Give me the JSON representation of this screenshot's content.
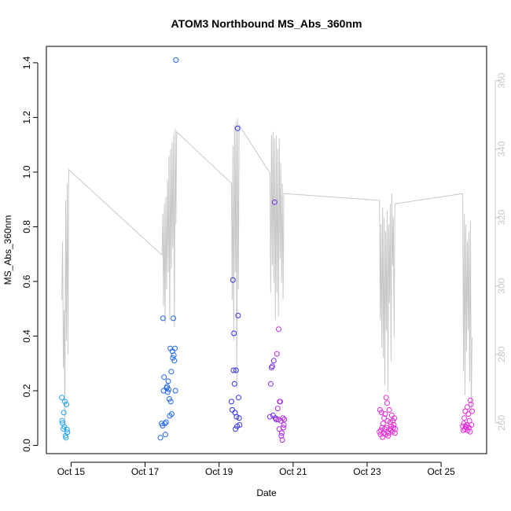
{
  "chart_data": {
    "type": "scatter",
    "title": "ATOM3 Northbound MS_Abs_360nm",
    "xlabel": "Date",
    "ylabel": "MS_Abs_360nm",
    "xlim": [
      "2023-10-14 08:00",
      "2023-10-26 05:30"
    ],
    "ylim": [
      -0.03,
      1.46
    ],
    "y2lim": [
      251,
      370
    ],
    "x_ticks": [
      {
        "date": "2023-10-15",
        "label": "Oct 15"
      },
      {
        "date": "2023-10-17",
        "label": "Oct 17"
      },
      {
        "date": "2023-10-19",
        "label": "Oct 19"
      },
      {
        "date": "2023-10-21",
        "label": "Oct 21"
      },
      {
        "date": "2023-10-23",
        "label": "Oct 23"
      },
      {
        "date": "2023-10-25",
        "label": "Oct 25"
      }
    ],
    "y_ticks": [
      "0.0",
      "0.2",
      "0.4",
      "0.6",
      "0.8",
      "1.0",
      "1.2",
      "1.4"
    ],
    "y2_ticks": [
      "260",
      "280",
      "300",
      "320",
      "340",
      "360"
    ],
    "grid": false,
    "colors": {
      "line_series": "#c8c8c8",
      "right_axis": "#c8c8c8",
      "points": [
        "#1ea5f0",
        "#1e64f0",
        "#2f2ff0",
        "#7a2bf0",
        "#b42ae6",
        "#e62ad8"
      ]
    },
    "series": [
      {
        "kind": "points",
        "color": "#1ea5f0",
        "x": [
          "2023-10-14 18:00",
          "2023-10-14 18:10",
          "2023-10-14 18:30",
          "2023-10-14 19:00",
          "2023-10-14 19:20",
          "2023-10-14 19:40",
          "2023-10-14 20:00",
          "2023-10-14 20:20",
          "2023-10-14 20:40",
          "2023-10-14 21:00",
          "2023-10-14 21:20",
          "2023-10-14 21:40"
        ],
        "y": [
          0.175,
          0.09,
          0.082,
          0.06,
          0.12,
          0.068,
          0.16,
          0.035,
          0.028,
          0.15,
          0.058,
          0.048
        ]
      },
      {
        "kind": "points",
        "color": "#1e64f0",
        "x": [
          "2023-10-17 10:00",
          "2023-10-17 10:40",
          "2023-10-17 11:20",
          "2023-10-17 11:40",
          "2023-10-17 12:00",
          "2023-10-17 12:20",
          "2023-10-17 12:50",
          "2023-10-17 13:10",
          "2023-10-17 13:40",
          "2023-10-17 14:00",
          "2023-10-17 14:20",
          "2023-10-17 14:40",
          "2023-10-17 15:00",
          "2023-10-17 15:20",
          "2023-10-17 15:40",
          "2023-10-17 16:00",
          "2023-10-17 16:20",
          "2023-10-17 16:40",
          "2023-10-17 17:00",
          "2023-10-17 17:20",
          "2023-10-17 17:40",
          "2023-10-17 18:00",
          "2023-10-17 18:20",
          "2023-10-17 18:40",
          "2023-10-17 19:00",
          "2023-10-17 19:20",
          "2023-10-17 19:40",
          "2023-10-17 20:00"
        ],
        "y": [
          0.028,
          0.08,
          0.072,
          0.465,
          0.2,
          0.25,
          0.08,
          0.04,
          0.085,
          0.21,
          0.215,
          0.195,
          0.235,
          0.205,
          0.17,
          0.108,
          0.355,
          0.16,
          0.27,
          0.115,
          0.345,
          0.32,
          0.465,
          0.33,
          0.31,
          0.355,
          0.2,
          1.41
        ]
      },
      {
        "kind": "points",
        "color": "#2f2ff0",
        "x": [
          "2023-10-19 08:00",
          "2023-10-19 08:30",
          "2023-10-19 09:00",
          "2023-10-19 09:20",
          "2023-10-19 09:40",
          "2023-10-19 10:00",
          "2023-10-19 10:20",
          "2023-10-19 10:40",
          "2023-10-19 11:00",
          "2023-10-19 11:20",
          "2023-10-19 11:40",
          "2023-10-19 12:00",
          "2023-10-19 12:20",
          "2023-10-19 12:40",
          "2023-10-19 13:00",
          "2023-10-19 13:20"
        ],
        "y": [
          0.16,
          0.13,
          0.605,
          0.275,
          0.41,
          0.225,
          0.12,
          0.06,
          0.275,
          0.105,
          0.07,
          1.16,
          0.475,
          0.175,
          0.1,
          0.075
        ]
      },
      {
        "kind": "points",
        "color": "#7a2bf0",
        "x": [
          "2023-10-20 09:00",
          "2023-10-20 09:30",
          "2023-10-20 10:00",
          "2023-10-20 10:30",
          "2023-10-20 11:00",
          "2023-10-20 11:30",
          "2023-10-20 12:00",
          "2023-10-20 12:30",
          "2023-10-20 13:00"
        ],
        "y": [
          0.105,
          0.225,
          0.285,
          0.29,
          0.11,
          0.31,
          0.89,
          0.1,
          0.095
        ]
      },
      {
        "kind": "points",
        "color": "#b42ae6",
        "x": [
          "2023-10-20 13:30",
          "2023-10-20 14:00",
          "2023-10-20 14:20",
          "2023-10-20 14:40",
          "2023-10-20 15:00",
          "2023-10-20 15:20",
          "2023-10-20 15:40",
          "2023-10-20 16:00",
          "2023-10-20 16:20",
          "2023-10-20 16:40",
          "2023-10-20 17:00",
          "2023-10-20 17:20",
          "2023-10-20 17:40",
          "2023-10-20 18:00",
          "2023-10-20 18:20"
        ],
        "y": [
          0.335,
          0.135,
          0.095,
          0.425,
          0.06,
          0.16,
          0.16,
          0.09,
          0.035,
          0.045,
          0.02,
          0.1,
          0.065,
          0.075,
          0.095
        ]
      },
      {
        "kind": "points",
        "color": "#e62ad8",
        "x": [
          "2023-10-23 08:00",
          "2023-10-23 08:20",
          "2023-10-23 08:40",
          "2023-10-23 09:00",
          "2023-10-23 09:20",
          "2023-10-23 09:40",
          "2023-10-23 10:00",
          "2023-10-23 10:20",
          "2023-10-23 10:40",
          "2023-10-23 11:00",
          "2023-10-23 11:20",
          "2023-10-23 11:40",
          "2023-10-23 12:00",
          "2023-10-23 12:20",
          "2023-10-23 12:40",
          "2023-10-23 13:00",
          "2023-10-23 13:20",
          "2023-10-23 13:40",
          "2023-10-23 14:00",
          "2023-10-23 14:20",
          "2023-10-23 14:40",
          "2023-10-23 15:00",
          "2023-10-23 15:20",
          "2023-10-23 15:40",
          "2023-10-23 16:00",
          "2023-10-23 16:20",
          "2023-10-23 16:40",
          "2023-10-23 17:00",
          "2023-10-23 17:20",
          "2023-10-23 17:40",
          "2023-10-23 18:00",
          "2023-10-23 18:20",
          "2023-10-25 14:00",
          "2023-10-25 14:20",
          "2023-10-25 14:40",
          "2023-10-25 15:00",
          "2023-10-25 15:20",
          "2023-10-25 15:40",
          "2023-10-25 16:00",
          "2023-10-25 16:20",
          "2023-10-25 16:40",
          "2023-10-25 17:00",
          "2023-10-25 17:20",
          "2023-10-25 17:40",
          "2023-10-25 18:00",
          "2023-10-25 18:20",
          "2023-10-25 18:40",
          "2023-10-25 19:00",
          "2023-10-25 19:20",
          "2023-10-25 19:40",
          "2023-10-25 20:00"
        ],
        "y": [
          0.05,
          0.13,
          0.04,
          0.055,
          0.12,
          0.065,
          0.03,
          0.08,
          0.045,
          0.1,
          0.06,
          0.115,
          0.04,
          0.175,
          0.065,
          0.155,
          0.09,
          0.035,
          0.045,
          0.13,
          0.06,
          0.085,
          0.055,
          0.07,
          0.11,
          0.05,
          0.09,
          0.065,
          0.075,
          0.1,
          0.045,
          0.06,
          0.07,
          0.055,
          0.08,
          0.1,
          0.06,
          0.125,
          0.07,
          0.065,
          0.075,
          0.14,
          0.055,
          0.115,
          0.065,
          0.09,
          0.05,
          0.165,
          0.15,
          0.075,
          0.125
        ]
      },
      {
        "kind": "line",
        "axis": "right",
        "color": "#c8c8c8",
        "x": [
          "2023-10-14 18:00",
          "2023-10-14 18:30",
          "2023-10-14 19:00",
          "2023-10-14 19:30",
          "2023-10-14 20:00",
          "2023-10-14 20:30",
          "2023-10-14 21:00",
          "2023-10-14 21:30",
          "2023-10-14 22:00",
          "2023-10-14 22:30",
          "2023-10-17 11:00",
          "2023-10-17 11:30",
          "2023-10-17 12:00",
          "2023-10-17 12:30",
          "2023-10-17 13:00",
          "2023-10-17 13:30",
          "2023-10-17 14:00",
          "2023-10-17 14:30",
          "2023-10-17 15:00",
          "2023-10-17 15:30",
          "2023-10-17 16:00",
          "2023-10-17 16:30",
          "2023-10-17 17:00",
          "2023-10-17 17:30",
          "2023-10-17 18:00",
          "2023-10-17 18:30",
          "2023-10-17 19:00",
          "2023-10-17 19:30",
          "2023-10-17 20:00",
          "2023-10-17 20:30",
          "2023-10-19 08:00",
          "2023-10-19 08:30",
          "2023-10-19 09:00",
          "2023-10-19 09:30",
          "2023-10-19 10:00",
          "2023-10-19 10:30",
          "2023-10-19 11:00",
          "2023-10-19 11:30",
          "2023-10-19 12:00",
          "2023-10-19 12:30",
          "2023-10-19 13:00",
          "2023-10-20 09:00",
          "2023-10-20 09:30",
          "2023-10-20 10:00",
          "2023-10-20 10:30",
          "2023-10-20 11:00",
          "2023-10-20 11:30",
          "2023-10-20 12:00",
          "2023-10-20 12:30",
          "2023-10-20 13:00",
          "2023-10-20 13:30",
          "2023-10-20 14:00",
          "2023-10-20 14:30",
          "2023-10-20 15:00",
          "2023-10-20 15:30",
          "2023-10-20 16:00",
          "2023-10-20 16:30",
          "2023-10-20 17:00",
          "2023-10-20 17:30",
          "2023-10-20 18:00",
          "2023-10-23 08:00",
          "2023-10-23 08:30",
          "2023-10-23 09:00",
          "2023-10-23 09:30",
          "2023-10-23 10:00",
          "2023-10-23 10:30",
          "2023-10-23 11:00",
          "2023-10-23 11:30",
          "2023-10-23 12:00",
          "2023-10-23 12:30",
          "2023-10-23 13:00",
          "2023-10-23 13:30",
          "2023-10-23 14:00",
          "2023-10-23 14:30",
          "2023-10-23 15:00",
          "2023-10-23 15:30",
          "2023-10-23 16:00",
          "2023-10-23 16:30",
          "2023-10-23 17:00",
          "2023-10-23 17:30",
          "2023-10-23 18:00",
          "2023-10-25 14:00",
          "2023-10-25 14:30",
          "2023-10-25 15:00",
          "2023-10-25 15:30",
          "2023-10-25 16:00",
          "2023-10-25 16:30",
          "2023-10-25 17:00",
          "2023-10-25 17:30",
          "2023-10-25 18:00",
          "2023-10-25 18:30",
          "2023-10-25 19:00",
          "2023-10-25 19:30",
          "2023-10-25 20:00"
        ],
        "y": [
          296,
          313,
          276,
          293,
          256,
          325,
          284,
          330,
          280,
          334,
          309,
          321,
          294,
          324,
          289,
          326,
          299,
          331,
          304,
          338,
          290,
          340,
          305,
          342,
          311,
          344,
          288,
          346,
          318,
          345,
          330,
          296,
          341,
          284,
          347,
          304,
          348,
          270,
          349,
          299,
          347,
          333,
          298,
          344,
          306,
          345,
          301,
          343,
          290,
          344,
          298,
          340,
          291,
          343,
          308,
          336,
          301,
          330,
          296,
          327,
          325,
          290,
          318,
          282,
          323,
          279,
          320,
          271,
          316,
          287,
          322,
          269,
          318,
          295,
          324,
          278,
          327,
          306,
          320,
          285,
          324,
          327,
          275,
          321,
          268,
          318,
          281,
          313,
          287,
          316,
          272,
          319,
          263,
          285
        ]
      }
    ]
  }
}
